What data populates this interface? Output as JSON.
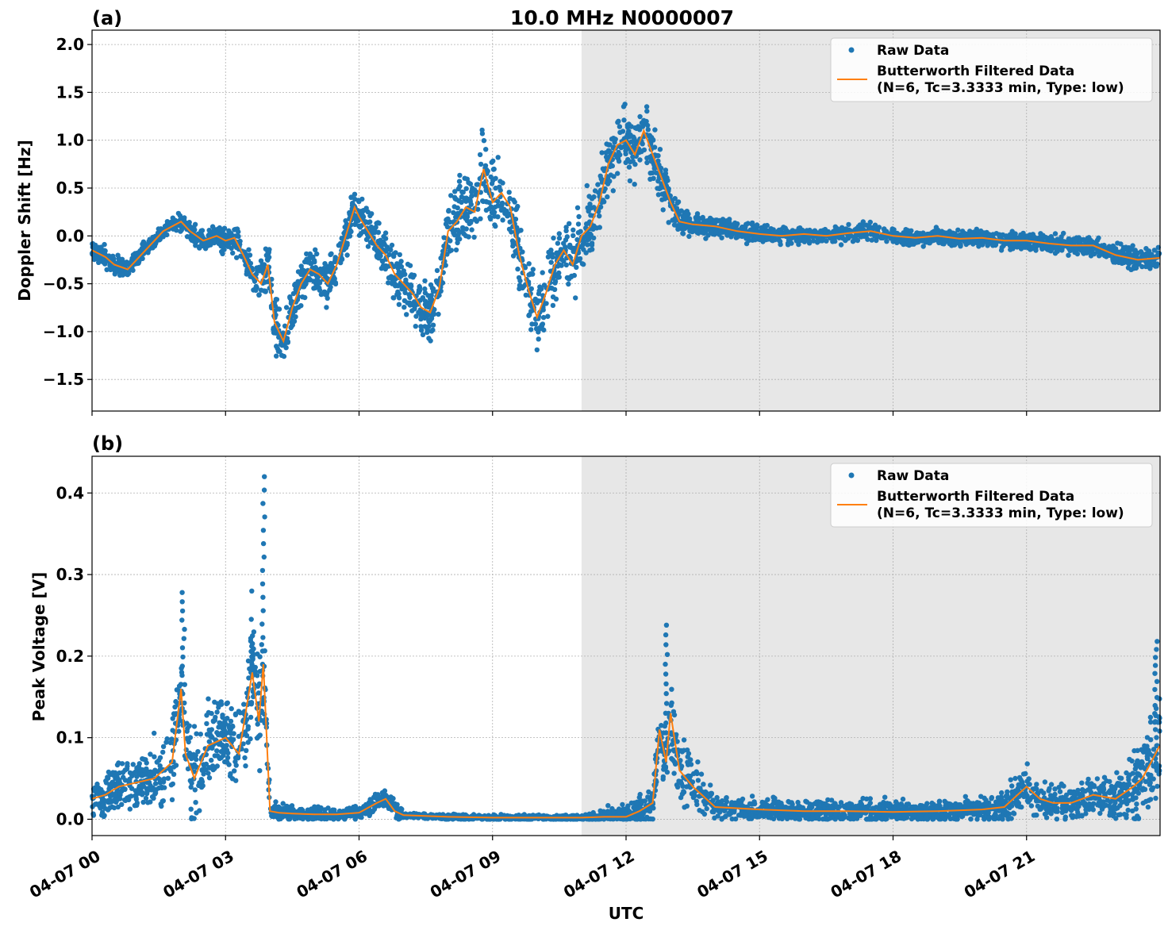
{
  "chart_data": {
    "type": "scatter",
    "title": "10.0 MHz N0000007",
    "xlabel": "UTC",
    "x_unit": "hours since 04-07 00:00 UTC",
    "xlim": [
      0,
      24
    ],
    "x_ticks": [
      0,
      3,
      6,
      9,
      12,
      15,
      18,
      21
    ],
    "x_tick_labels": [
      "04-07 00",
      "04-07 03",
      "04-07 06",
      "04-07 09",
      "04-07 12",
      "04-07 15",
      "04-07 18",
      "04-07 21"
    ],
    "shaded_region_hours": [
      11,
      24
    ],
    "grid": true,
    "legend": {
      "position": "top-right",
      "entries": [
        "Raw Data",
        "Butterworth Filtered Data",
        "(N=6, Tc=3.3333 min, Type: low)"
      ]
    },
    "panels": [
      {
        "label": "(a)",
        "ylabel": "Doppler Shift [Hz]",
        "ylim": [
          -1.83,
          2.15
        ],
        "y_ticks": [
          -1.5,
          -1.0,
          -0.5,
          0.0,
          0.5,
          1.0,
          1.5,
          2.0
        ],
        "y_tick_labels": [
          "−1.5",
          "−1.0",
          "−0.5",
          "0.0",
          "0.5",
          "1.0",
          "1.5",
          "2.0"
        ],
        "series": [
          {
            "name": "Butterworth Filtered Data",
            "color": "#ff7f0e",
            "x": [
              0,
              0.3,
              0.5,
              0.8,
              1.1,
              1.3,
              1.6,
              1.8,
              2.0,
              2.2,
              2.5,
              2.8,
              3.0,
              3.2,
              3.4,
              3.6,
              3.8,
              3.95,
              4.1,
              4.3,
              4.5,
              4.7,
              4.9,
              5.1,
              5.3,
              5.5,
              5.7,
              5.9,
              6.0,
              6.2,
              6.4,
              6.6,
              6.8,
              7.0,
              7.2,
              7.4,
              7.6,
              7.8,
              8.0,
              8.2,
              8.4,
              8.6,
              8.8,
              9.0,
              9.2,
              9.4,
              9.6,
              9.8,
              10.0,
              10.2,
              10.4,
              10.6,
              10.8,
              11.0,
              11.2,
              11.4,
              11.6,
              11.8,
              12.0,
              12.2,
              12.4,
              12.6,
              12.8,
              13.0,
              13.2,
              13.5,
              14.0,
              14.5,
              15.0,
              15.5,
              16.0,
              16.5,
              17.0,
              17.5,
              18.0,
              18.5,
              19.0,
              19.5,
              20.0,
              20.5,
              21.0,
              21.5,
              22.0,
              22.5,
              23.0,
              23.5,
              23.99
            ],
            "y": [
              -0.15,
              -0.22,
              -0.3,
              -0.35,
              -0.2,
              -0.1,
              0.05,
              0.1,
              0.15,
              0.05,
              -0.05,
              0.0,
              -0.05,
              -0.02,
              -0.2,
              -0.4,
              -0.5,
              -0.3,
              -0.9,
              -1.1,
              -0.75,
              -0.5,
              -0.35,
              -0.4,
              -0.5,
              -0.3,
              0.0,
              0.3,
              0.2,
              0.05,
              -0.1,
              -0.2,
              -0.4,
              -0.5,
              -0.6,
              -0.75,
              -0.8,
              -0.55,
              0.05,
              0.15,
              0.3,
              0.25,
              0.7,
              0.35,
              0.45,
              0.3,
              -0.2,
              -0.55,
              -0.85,
              -0.6,
              -0.3,
              -0.15,
              -0.3,
              0.0,
              0.1,
              0.35,
              0.75,
              0.95,
              1.0,
              0.85,
              1.1,
              0.85,
              0.6,
              0.35,
              0.15,
              0.12,
              0.1,
              0.05,
              0.02,
              0.0,
              0.02,
              0.0,
              0.03,
              0.05,
              0.0,
              -0.02,
              0.0,
              -0.03,
              -0.02,
              -0.05,
              -0.05,
              -0.08,
              -0.1,
              -0.1,
              -0.2,
              -0.25,
              -0.23
            ]
          }
        ],
        "raw_data_color": "#1f77b4",
        "raw_band_halfwidth_hz": [
          [
            0,
            0.15
          ],
          [
            1.5,
            0.12
          ],
          [
            2.5,
            0.15
          ],
          [
            3.5,
            0.25
          ],
          [
            4.2,
            0.45
          ],
          [
            5.0,
            0.35
          ],
          [
            6.0,
            0.3
          ],
          [
            7.0,
            0.4
          ],
          [
            8.0,
            0.45
          ],
          [
            9.0,
            0.65
          ],
          [
            10.0,
            0.5
          ],
          [
            11.0,
            0.55
          ],
          [
            12.0,
            0.45
          ],
          [
            12.8,
            0.35
          ],
          [
            13.5,
            0.15
          ],
          [
            16.0,
            0.12
          ],
          [
            18.0,
            0.12
          ],
          [
            21.0,
            0.12
          ],
          [
            24.0,
            0.18
          ]
        ]
      },
      {
        "label": "(b)",
        "ylabel": "Peak Voltage [V]",
        "xlabel": "UTC",
        "ylim": [
          -0.02,
          0.445
        ],
        "y_ticks": [
          0.0,
          0.1,
          0.2,
          0.3,
          0.4
        ],
        "y_tick_labels": [
          "0.0",
          "0.1",
          "0.2",
          "0.3",
          "0.4"
        ],
        "series": [
          {
            "name": "Butterworth Filtered Data",
            "color": "#ff7f0e",
            "x": [
              0,
              0.3,
              0.6,
              1.0,
              1.4,
              1.8,
              2.0,
              2.1,
              2.3,
              2.6,
              3.0,
              3.3,
              3.6,
              3.75,
              3.85,
              4.0,
              4.2,
              4.5,
              5.0,
              5.5,
              6.0,
              6.4,
              6.6,
              6.8,
              7.0,
              8.0,
              9.0,
              10.0,
              11.0,
              11.5,
              12.0,
              12.3,
              12.6,
              12.75,
              12.9,
              13.0,
              13.2,
              13.5,
              14.0,
              15.0,
              16.0,
              17.0,
              18.0,
              19.0,
              20.0,
              20.5,
              21.0,
              21.3,
              21.6,
              22.0,
              22.5,
              23.0,
              23.4,
              23.6,
              23.8,
              23.99
            ],
            "y": [
              0.025,
              0.03,
              0.04,
              0.045,
              0.05,
              0.07,
              0.16,
              0.08,
              0.05,
              0.09,
              0.1,
              0.08,
              0.18,
              0.12,
              0.19,
              0.01,
              0.008,
              0.007,
              0.006,
              0.006,
              0.008,
              0.02,
              0.025,
              0.01,
              0.005,
              0.003,
              0.002,
              0.002,
              0.002,
              0.003,
              0.003,
              0.01,
              0.02,
              0.11,
              0.07,
              0.13,
              0.06,
              0.04,
              0.015,
              0.012,
              0.01,
              0.01,
              0.009,
              0.01,
              0.012,
              0.015,
              0.04,
              0.025,
              0.02,
              0.02,
              0.03,
              0.025,
              0.04,
              0.05,
              0.07,
              0.09
            ]
          }
        ],
        "raw_data_color": "#1f77b4",
        "raw_band_halfwidth_v": [
          [
            0,
            0.03
          ],
          [
            1.0,
            0.05
          ],
          [
            2.0,
            0.08
          ],
          [
            3.0,
            0.07
          ],
          [
            3.8,
            0.12
          ],
          [
            4.0,
            0.015
          ],
          [
            6.0,
            0.01
          ],
          [
            6.8,
            0.02
          ],
          [
            7.0,
            0.005
          ],
          [
            11.0,
            0.004
          ],
          [
            12.5,
            0.03
          ],
          [
            13.0,
            0.08
          ],
          [
            13.5,
            0.05
          ],
          [
            14.0,
            0.02
          ],
          [
            20.0,
            0.02
          ],
          [
            21.0,
            0.04
          ],
          [
            22.0,
            0.03
          ],
          [
            23.0,
            0.04
          ],
          [
            24.0,
            0.1
          ]
        ],
        "raw_spikes": [
          {
            "x": 2.05,
            "y": 0.278
          },
          {
            "x": 3.6,
            "y": 0.225
          },
          {
            "x": 3.85,
            "y": 0.42
          },
          {
            "x": 12.9,
            "y": 0.238
          },
          {
            "x": 23.9,
            "y": 0.218
          }
        ]
      }
    ]
  }
}
